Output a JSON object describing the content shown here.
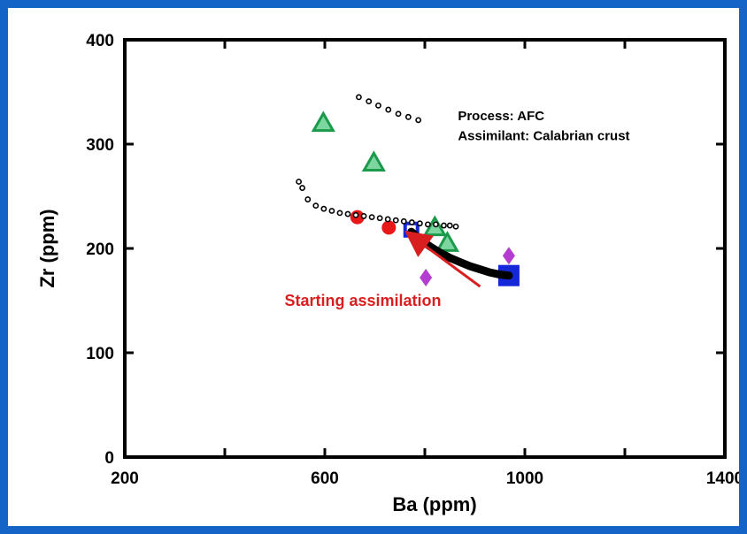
{
  "colors": {
    "frame": "#1464c8",
    "circle": "#e81818",
    "triangle_stroke": "#1a9a4a",
    "triangle_fill": "#7dd6a0",
    "diamond": "#b43cd0",
    "square": "#1428d8",
    "annotation": "#d81e1e",
    "axis": "#000000"
  },
  "chart_data": {
    "type": "scatter",
    "title": "",
    "xlabel": "Ba (ppm)",
    "ylabel": "Zr (ppm)",
    "xlim": [
      200,
      1400
    ],
    "ylim": [
      0,
      400
    ],
    "x_ticks": [
      200,
      600,
      1000,
      1400
    ],
    "x_minor_ticks": [
      400,
      800,
      1200
    ],
    "y_ticks": [
      0,
      100,
      200,
      300,
      400
    ],
    "grid": false,
    "legend": "none",
    "series": [
      {
        "marker": "circle",
        "points": [
          [
            665,
            230
          ],
          [
            728,
            220
          ]
        ]
      },
      {
        "marker": "triangle",
        "points": [
          [
            597,
            320
          ],
          [
            698,
            282
          ],
          [
            820,
            220
          ],
          [
            845,
            205
          ]
        ]
      },
      {
        "marker": "diamond",
        "points": [
          [
            802,
            172
          ],
          [
            968,
            193
          ]
        ]
      },
      {
        "marker": "square",
        "points": [
          [
            773,
            218
          ],
          [
            968,
            174
          ]
        ]
      },
      {
        "marker": "open-circle-small",
        "points": [
          [
            668,
            345
          ],
          [
            688,
            341
          ],
          [
            707,
            337
          ],
          [
            727,
            333
          ],
          [
            747,
            329
          ],
          [
            767,
            326
          ],
          [
            787,
            323
          ],
          [
            548,
            264
          ],
          [
            555,
            258
          ],
          [
            566,
            247
          ],
          [
            582,
            241
          ],
          [
            598,
            238
          ],
          [
            614,
            236
          ],
          [
            630,
            234
          ],
          [
            646,
            233
          ],
          [
            662,
            232
          ],
          [
            678,
            231
          ],
          [
            694,
            230
          ],
          [
            710,
            229
          ],
          [
            726,
            228
          ],
          [
            742,
            227
          ],
          [
            758,
            226
          ],
          [
            774,
            225
          ],
          [
            790,
            224
          ],
          [
            806,
            223
          ],
          [
            822,
            223
          ],
          [
            838,
            222
          ],
          [
            850,
            222
          ],
          [
            862,
            221
          ]
        ]
      },
      {
        "marker": "filled-dot-line",
        "points": [
          [
            773,
            216
          ],
          [
            790,
            209
          ],
          [
            810,
            202
          ],
          [
            830,
            196
          ],
          [
            850,
            191
          ],
          [
            870,
            187
          ],
          [
            890,
            183
          ],
          [
            910,
            180
          ],
          [
            930,
            177
          ],
          [
            950,
            175
          ],
          [
            968,
            174
          ]
        ]
      }
    ],
    "annotations": [
      {
        "text": "Process: AFC",
        "x": 905,
        "y": 323
      },
      {
        "text": "Assimilant: Calabrian crust",
        "x": 905,
        "y": 307
      },
      {
        "text": "Starting assimilation",
        "x": 530,
        "y": 155,
        "arrow_to": [
          768,
          214
        ]
      }
    ]
  }
}
